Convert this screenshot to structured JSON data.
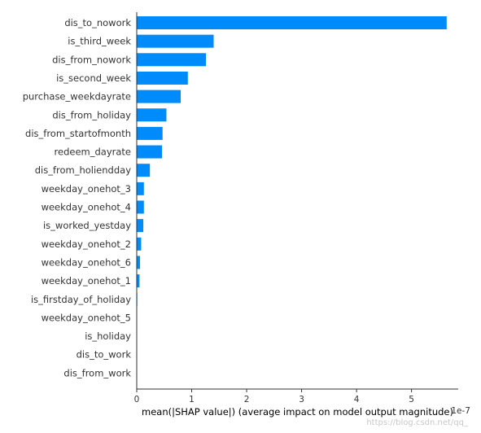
{
  "chart_data": {
    "type": "bar",
    "orientation": "horizontal",
    "title": "",
    "xlabel": "mean(|SHAP value|) (average impact on model output magnitude)",
    "ylabel": "",
    "xlim": [
      0,
      5.85
    ],
    "xticks": [
      0,
      1,
      2,
      3,
      4,
      5
    ],
    "grid": false,
    "legend": "none",
    "bar_color": "#008bfb",
    "categories": [
      "dis_to_nowork",
      "is_third_week",
      "dis_from_nowork",
      "is_second_week",
      "purchase_weekdayrate",
      "dis_from_holiday",
      "dis_from_startofmonth",
      "redeem_dayrate",
      "dis_from_holiendday",
      "weekday_onehot_3",
      "weekday_onehot_4",
      "is_worked_yestday",
      "weekday_onehot_2",
      "weekday_onehot_6",
      "weekday_onehot_1",
      "is_firstday_of_holiday",
      "weekday_onehot_5",
      "is_holiday",
      "dis_to_work",
      "dis_from_work"
    ],
    "values": [
      5.64,
      1.4,
      1.26,
      0.93,
      0.8,
      0.54,
      0.47,
      0.46,
      0.24,
      0.13,
      0.13,
      0.12,
      0.08,
      0.06,
      0.05,
      0.01,
      0.003,
      0.0,
      0.0,
      0.0
    ]
  },
  "overlay_text": {
    "corner_fragment": "1e-7",
    "watermark": "https://blog.csdn.net/qq_"
  }
}
